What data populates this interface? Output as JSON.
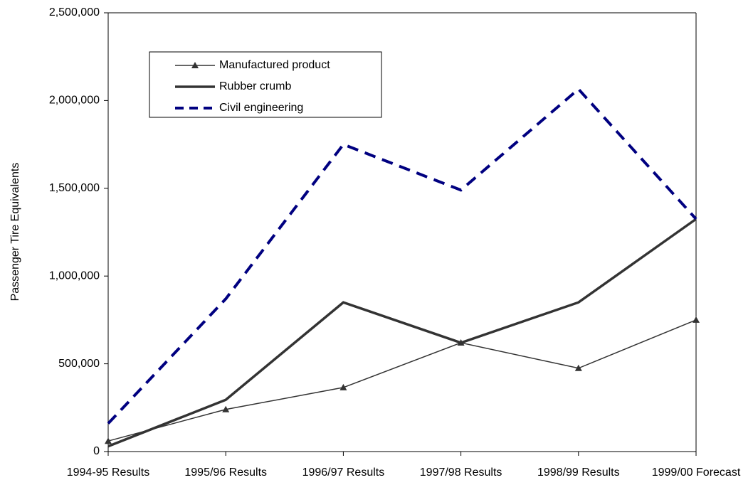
{
  "chart_data": {
    "type": "line",
    "y_label": "Passenger Tire Equivalents",
    "categories": [
      "1994-95 Results",
      "1995/96 Results",
      "1996/97 Results",
      "1997/98 Results",
      "1998/99 Results",
      "1999/00 Forecast"
    ],
    "series": [
      {
        "name": "Manufactured product",
        "color": "#333333",
        "width": 1.5,
        "dash": false,
        "marker": "triangle",
        "values": [
          60000,
          240000,
          365000,
          620000,
          475000,
          750000
        ]
      },
      {
        "name": "Rubber crumb",
        "color": "#333333",
        "width": 3.5,
        "dash": false,
        "marker": "none",
        "values": [
          30000,
          295000,
          850000,
          620000,
          850000,
          1325000
        ]
      },
      {
        "name": "Civil engineering",
        "color": "#000080",
        "width": 4,
        "dash": true,
        "marker": "none",
        "values": [
          160000,
          870000,
          1750000,
          1490000,
          2065000,
          1325000
        ]
      }
    ],
    "ylim": [
      0,
      2500000
    ],
    "yticks": [
      0,
      {
        "value": 500000,
        "label": "500,000"
      },
      {
        "value": 1000000,
        "label": "1,000,000"
      },
      {
        "value": 1500000,
        "label": "1,500,000"
      },
      {
        "value": 2000000,
        "label": "2,000,000"
      },
      {
        "value": 2500000,
        "label": "2,500,000"
      }
    ],
    "grid": false
  }
}
